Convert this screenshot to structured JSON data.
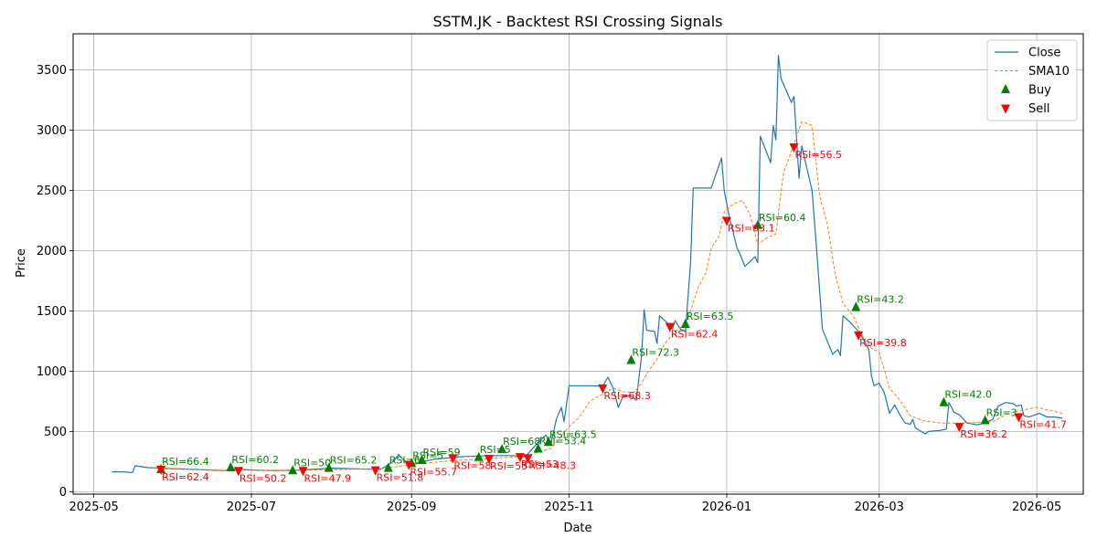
{
  "chart_data": {
    "type": "line",
    "title": "SSTM.JK - Backtest RSI Crossing Signals",
    "xlabel": "Date",
    "ylabel": "Price",
    "xlim": [
      "2025-04-23",
      "2026-05-19"
    ],
    "ylim": [
      -20,
      3800
    ],
    "x_ticks": [
      {
        "date": "2025-05-01",
        "label": "2025-05"
      },
      {
        "date": "2025-07-01",
        "label": "2025-07"
      },
      {
        "date": "2025-09-01",
        "label": "2025-09"
      },
      {
        "date": "2025-11-01",
        "label": "2025-11"
      },
      {
        "date": "2026-01-01",
        "label": "2026-01"
      },
      {
        "date": "2026-03-01",
        "label": "2026-03"
      },
      {
        "date": "2026-05-01",
        "label": "2026-05"
      }
    ],
    "y_ticks": [
      0,
      500,
      1000,
      1500,
      2000,
      2500,
      3000,
      3500
    ],
    "grid": true,
    "legend_position": "top-right",
    "colors": {
      "close": "#1f77b4",
      "sma": "#ff7f0e",
      "buy": "#008000",
      "sell": "#ff0000"
    },
    "series": [
      {
        "name": "Close",
        "style": "solid",
        "points": [
          [
            "2025-05-08",
            165
          ],
          [
            "2025-05-12",
            165
          ],
          [
            "2025-05-16",
            160
          ],
          [
            "2025-05-17",
            215
          ],
          [
            "2025-05-22",
            200
          ],
          [
            "2025-05-27",
            195
          ],
          [
            "2025-06-01",
            190
          ],
          [
            "2025-06-10",
            185
          ],
          [
            "2025-06-20",
            175
          ],
          [
            "2025-06-25",
            190
          ],
          [
            "2025-07-01",
            180
          ],
          [
            "2025-07-10",
            175
          ],
          [
            "2025-07-20",
            180
          ],
          [
            "2025-08-01",
            195
          ],
          [
            "2025-08-10",
            190
          ],
          [
            "2025-08-20",
            185
          ],
          [
            "2025-08-25",
            250
          ],
          [
            "2025-08-27",
            310
          ],
          [
            "2025-08-29",
            260
          ],
          [
            "2025-09-01",
            230
          ],
          [
            "2025-09-10",
            270
          ],
          [
            "2025-09-20",
            290
          ],
          [
            "2025-10-01",
            300
          ],
          [
            "2025-10-10",
            300
          ],
          [
            "2025-10-15",
            290
          ],
          [
            "2025-10-20",
            410
          ],
          [
            "2025-10-23",
            470
          ],
          [
            "2025-10-25",
            400
          ],
          [
            "2025-10-27",
            600
          ],
          [
            "2025-10-29",
            700
          ],
          [
            "2025-10-30",
            580
          ],
          [
            "2025-11-01",
            880
          ],
          [
            "2025-11-08",
            880
          ],
          [
            "2025-11-14",
            875
          ],
          [
            "2025-11-16",
            950
          ],
          [
            "2025-11-18",
            860
          ],
          [
            "2025-11-20",
            700
          ],
          [
            "2025-11-22",
            800
          ],
          [
            "2025-11-25",
            790
          ],
          [
            "2025-11-27",
            760
          ],
          [
            "2025-11-29",
            1120
          ],
          [
            "2025-11-30",
            1510
          ],
          [
            "2025-12-01",
            1340
          ],
          [
            "2025-12-04",
            1330
          ],
          [
            "2025-12-05",
            1230
          ],
          [
            "2025-12-06",
            1460
          ],
          [
            "2025-12-09",
            1400
          ],
          [
            "2025-12-11",
            1350
          ],
          [
            "2025-12-12",
            1420
          ],
          [
            "2025-12-14",
            1350
          ],
          [
            "2025-12-16",
            1330
          ],
          [
            "2025-12-18",
            1900
          ],
          [
            "2025-12-19",
            2520
          ],
          [
            "2025-12-23",
            2520
          ],
          [
            "2025-12-26",
            2520
          ],
          [
            "2025-12-30",
            2770
          ],
          [
            "2025-12-31",
            2500
          ],
          [
            "2026-01-02",
            2280
          ],
          [
            "2026-01-05",
            2020
          ],
          [
            "2026-01-06",
            1980
          ],
          [
            "2026-01-08",
            1870
          ],
          [
            "2026-01-12",
            1950
          ],
          [
            "2026-01-13",
            1900
          ],
          [
            "2026-01-14",
            2950
          ],
          [
            "2026-01-18",
            2730
          ],
          [
            "2026-01-19",
            3040
          ],
          [
            "2026-01-20",
            2920
          ],
          [
            "2026-01-21",
            3620
          ],
          [
            "2026-01-22",
            3430
          ],
          [
            "2026-01-26",
            3230
          ],
          [
            "2026-01-27",
            3280
          ],
          [
            "2026-01-29",
            2600
          ],
          [
            "2026-01-30",
            2870
          ],
          [
            "2026-02-03",
            2500
          ],
          [
            "2026-02-05",
            1950
          ],
          [
            "2026-02-07",
            1350
          ],
          [
            "2026-02-11",
            1140
          ],
          [
            "2026-02-13",
            1180
          ],
          [
            "2026-02-14",
            1130
          ],
          [
            "2026-02-15",
            1460
          ],
          [
            "2026-02-18",
            1400
          ],
          [
            "2026-02-21",
            1330
          ],
          [
            "2026-02-23",
            1260
          ],
          [
            "2026-02-25",
            1180
          ],
          [
            "2026-02-26",
            960
          ],
          [
            "2026-02-27",
            880
          ],
          [
            "2026-03-01",
            900
          ],
          [
            "2026-03-03",
            820
          ],
          [
            "2026-03-05",
            650
          ],
          [
            "2026-03-07",
            720
          ],
          [
            "2026-03-09",
            640
          ],
          [
            "2026-03-11",
            570
          ],
          [
            "2026-03-13",
            560
          ],
          [
            "2026-03-14",
            600
          ],
          [
            "2026-03-15",
            530
          ],
          [
            "2026-03-18",
            490
          ],
          [
            "2026-03-19",
            480
          ],
          [
            "2026-03-20",
            500
          ],
          [
            "2026-03-25",
            510
          ],
          [
            "2026-03-27",
            520
          ],
          [
            "2026-03-28",
            740
          ],
          [
            "2026-03-30",
            660
          ],
          [
            "2026-04-01",
            640
          ],
          [
            "2026-04-04",
            570
          ],
          [
            "2026-04-08",
            555
          ],
          [
            "2026-04-11",
            570
          ],
          [
            "2026-04-14",
            600
          ],
          [
            "2026-04-16",
            710
          ],
          [
            "2026-04-19",
            740
          ],
          [
            "2026-04-22",
            730
          ],
          [
            "2026-04-23",
            710
          ],
          [
            "2026-04-25",
            720
          ],
          [
            "2026-04-26",
            630
          ],
          [
            "2026-04-28",
            620
          ],
          [
            "2026-05-02",
            650
          ],
          [
            "2026-05-05",
            620
          ],
          [
            "2026-05-08",
            620
          ],
          [
            "2026-05-11",
            610
          ]
        ]
      },
      {
        "name": "SMA10",
        "style": "dashed",
        "points": [
          [
            "2025-05-24",
            200
          ],
          [
            "2025-06-05",
            190
          ],
          [
            "2025-06-20",
            178
          ],
          [
            "2025-07-05",
            178
          ],
          [
            "2025-07-20",
            178
          ],
          [
            "2025-08-05",
            185
          ],
          [
            "2025-08-20",
            190
          ],
          [
            "2025-09-01",
            225
          ],
          [
            "2025-09-15",
            255
          ],
          [
            "2025-10-01",
            275
          ],
          [
            "2025-10-15",
            295
          ],
          [
            "2025-10-25",
            360
          ],
          [
            "2025-11-01",
            540
          ],
          [
            "2025-11-05",
            620
          ],
          [
            "2025-11-09",
            750
          ],
          [
            "2025-11-14",
            810
          ],
          [
            "2025-11-18",
            860
          ],
          [
            "2025-11-22",
            830
          ],
          [
            "2025-11-26",
            820
          ],
          [
            "2025-11-29",
            900
          ],
          [
            "2025-12-02",
            1010
          ],
          [
            "2025-12-05",
            1100
          ],
          [
            "2025-12-08",
            1230
          ],
          [
            "2025-12-12",
            1330
          ],
          [
            "2025-12-16",
            1390
          ],
          [
            "2025-12-18",
            1500
          ],
          [
            "2025-12-21",
            1700
          ],
          [
            "2025-12-24",
            1820
          ],
          [
            "2025-12-26",
            2020
          ],
          [
            "2025-12-29",
            2120
          ],
          [
            "2025-12-31",
            2320
          ],
          [
            "2026-01-03",
            2380
          ],
          [
            "2026-01-07",
            2420
          ],
          [
            "2026-01-10",
            2300
          ],
          [
            "2026-01-13",
            2050
          ],
          [
            "2026-01-16",
            2100
          ],
          [
            "2026-01-20",
            2140
          ],
          [
            "2026-01-23",
            2650
          ],
          [
            "2026-01-26",
            2820
          ],
          [
            "2026-01-30",
            3070
          ],
          [
            "2026-02-03",
            3040
          ],
          [
            "2026-02-06",
            2450
          ],
          [
            "2026-02-09",
            2220
          ],
          [
            "2026-02-12",
            1800
          ],
          [
            "2026-02-15",
            1560
          ],
          [
            "2026-02-19",
            1460
          ],
          [
            "2026-02-22",
            1310
          ],
          [
            "2026-02-26",
            1190
          ],
          [
            "2026-03-01",
            1160
          ],
          [
            "2026-03-05",
            860
          ],
          [
            "2026-03-09",
            760
          ],
          [
            "2026-03-13",
            630
          ],
          [
            "2026-03-18",
            590
          ],
          [
            "2026-03-25",
            570
          ],
          [
            "2026-04-01",
            570
          ],
          [
            "2026-04-08",
            575
          ],
          [
            "2026-04-14",
            580
          ],
          [
            "2026-04-20",
            650
          ],
          [
            "2026-04-26",
            680
          ],
          [
            "2026-05-01",
            700
          ],
          [
            "2026-05-05",
            680
          ],
          [
            "2026-05-11",
            650
          ]
        ]
      }
    ],
    "buy_signals": [
      {
        "date": "2025-05-27",
        "price": 185,
        "label": "RSI=66.4"
      },
      {
        "date": "2025-06-23",
        "price": 200,
        "label": "RSI=60.2"
      },
      {
        "date": "2025-07-17",
        "price": 175,
        "label": "RSI=50"
      },
      {
        "date": "2025-07-31",
        "price": 195,
        "label": "RSI=65.2"
      },
      {
        "date": "2025-08-23",
        "price": 195,
        "label": "RSI=6"
      },
      {
        "date": "2025-09-01",
        "price": 235,
        "label": "RSI=5"
      },
      {
        "date": "2025-09-05",
        "price": 260,
        "label": "RSI=59"
      },
      {
        "date": "2025-09-27",
        "price": 285,
        "label": "RSI=5"
      },
      {
        "date": "2025-10-06",
        "price": 350,
        "label": "RSI=68"
      },
      {
        "date": "2025-10-20",
        "price": 355,
        "label": "RSI=53.4"
      },
      {
        "date": "2025-10-24",
        "price": 410,
        "label": "RSI=63.5"
      },
      {
        "date": "2025-11-25",
        "price": 1090,
        "label": "RSI=72.3"
      },
      {
        "date": "2025-12-16",
        "price": 1390,
        "label": "RSI=63.5"
      },
      {
        "date": "2026-01-13",
        "price": 2210,
        "label": "RSI=60.4"
      },
      {
        "date": "2026-02-20",
        "price": 1530,
        "label": "RSI=43.2"
      },
      {
        "date": "2026-03-26",
        "price": 740,
        "label": "RSI=42.0"
      },
      {
        "date": "2026-04-11",
        "price": 590,
        "label": "RSI=3"
      }
    ],
    "sell_signals": [
      {
        "date": "2025-05-27",
        "price": 185,
        "label": "RSI=62.4"
      },
      {
        "date": "2025-06-26",
        "price": 175,
        "label": "RSI=50.2"
      },
      {
        "date": "2025-07-21",
        "price": 175,
        "label": "RSI=47.9"
      },
      {
        "date": "2025-08-18",
        "price": 180,
        "label": "RSI=51.8"
      },
      {
        "date": "2025-08-31",
        "price": 225,
        "label": "RSI=55.7"
      },
      {
        "date": "2025-09-17",
        "price": 280,
        "label": "RSI=58"
      },
      {
        "date": "2025-10-01",
        "price": 275,
        "label": "RSI=53"
      },
      {
        "date": "2025-10-13",
        "price": 290,
        "label": "RSI=53"
      },
      {
        "date": "2025-10-16",
        "price": 280,
        "label": "RSI=48.3"
      },
      {
        "date": "2025-11-14",
        "price": 860,
        "label": "RSI=68.3"
      },
      {
        "date": "2025-12-10",
        "price": 1370,
        "label": "RSI=62.4"
      },
      {
        "date": "2026-01-01",
        "price": 2250,
        "label": "RSI=63.1"
      },
      {
        "date": "2026-01-27",
        "price": 2860,
        "label": "RSI=56.5"
      },
      {
        "date": "2026-02-21",
        "price": 1300,
        "label": "RSI=39.8"
      },
      {
        "date": "2026-04-01",
        "price": 540,
        "label": "RSI=36.2"
      },
      {
        "date": "2026-04-24",
        "price": 620,
        "label": "RSI=41.7"
      }
    ],
    "legend": [
      {
        "label": "Close",
        "kind": "line-solid",
        "color": "#1f77b4"
      },
      {
        "label": "SMA10",
        "kind": "line-dashed",
        "color": "#ff7f0e"
      },
      {
        "label": "Buy",
        "kind": "marker-up",
        "color": "#008000"
      },
      {
        "label": "Sell",
        "kind": "marker-down",
        "color": "#ff0000"
      }
    ]
  }
}
